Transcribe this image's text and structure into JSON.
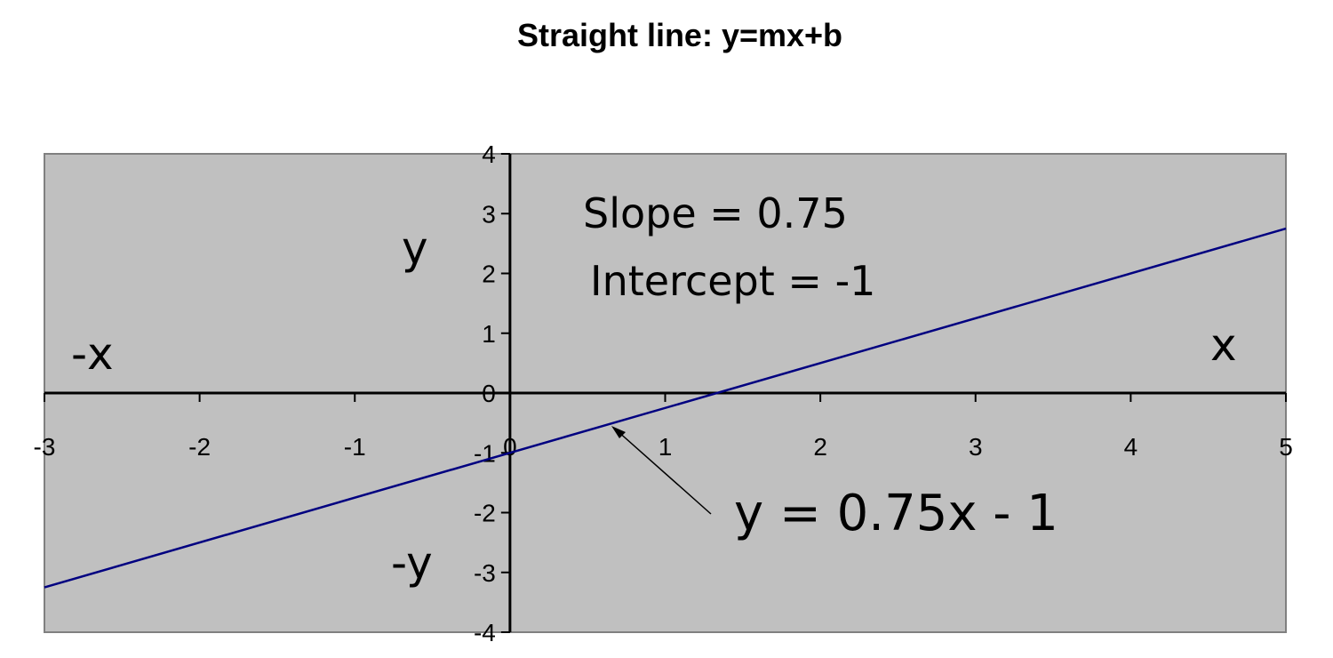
{
  "chart_data": {
    "type": "line",
    "title": "Straight line: y=mx+b",
    "xlabel": "",
    "ylabel": "",
    "xlim": [
      -3,
      5
    ],
    "ylim": [
      -4,
      4
    ],
    "x_ticks": [
      "-3",
      "-2",
      "-1",
      "0",
      "1",
      "2",
      "3",
      "4",
      "5"
    ],
    "y_ticks": [
      "4",
      "3",
      "2",
      "1",
      "0",
      "-1",
      "-2",
      "-3",
      "-4"
    ],
    "grid": false,
    "series": [
      {
        "x": [
          -3,
          5
        ],
        "y": [
          -3.25,
          2.75
        ],
        "color": "#000080"
      }
    ],
    "annotations": {
      "y_axis_pos": "y",
      "y_axis_neg": "-y",
      "x_axis_pos": "x",
      "x_axis_neg": "-x",
      "slope_text": "Slope = 0.75",
      "intercept_text": "Intercept = -1",
      "equation_text": "y = 0.75x - 1"
    },
    "colors": {
      "plot_background": "#c0c0c0",
      "line": "#000080",
      "axes": "#000000"
    }
  }
}
